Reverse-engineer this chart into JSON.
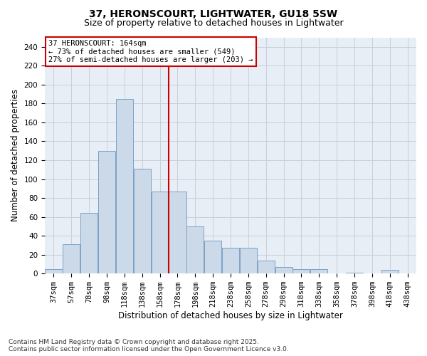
{
  "title": "37, HERONSCOURT, LIGHTWATER, GU18 5SW",
  "subtitle": "Size of property relative to detached houses in Lightwater",
  "xlabel": "Distribution of detached houses by size in Lightwater",
  "ylabel": "Number of detached properties",
  "bar_color": "#ccd9e8",
  "bar_edge_color": "#7ba3c8",
  "grid_color": "#c8d0dc",
  "background_color": "#e8eef5",
  "vline_color": "#cc0000",
  "annotation_text": "37 HERONSCOURT: 164sqm\n← 73% of detached houses are smaller (549)\n27% of semi-detached houses are larger (203) →",
  "annotation_box_edge_color": "#cc0000",
  "categories": [
    "37sqm",
    "57sqm",
    "78sqm",
    "98sqm",
    "118sqm",
    "138sqm",
    "158sqm",
    "178sqm",
    "198sqm",
    "218sqm",
    "238sqm",
    "258sqm",
    "278sqm",
    "298sqm",
    "318sqm",
    "338sqm",
    "358sqm",
    "378sqm",
    "398sqm",
    "418sqm",
    "438sqm"
  ],
  "values": [
    5,
    31,
    64,
    130,
    185,
    111,
    87,
    87,
    50,
    35,
    27,
    27,
    14,
    7,
    5,
    5,
    0,
    1,
    0,
    4,
    0
  ],
  "vline_bar_index": 6,
  "ylim": [
    0,
    250
  ],
  "yticks": [
    0,
    20,
    40,
    60,
    80,
    100,
    120,
    140,
    160,
    180,
    200,
    220,
    240
  ],
  "footnote": "Contains HM Land Registry data © Crown copyright and database right 2025.\nContains public sector information licensed under the Open Government Licence v3.0.",
  "title_fontsize": 10,
  "subtitle_fontsize": 9,
  "xlabel_fontsize": 8.5,
  "ylabel_fontsize": 8.5,
  "tick_fontsize": 7.5,
  "footnote_fontsize": 6.5,
  "ann_fontsize": 7.5
}
